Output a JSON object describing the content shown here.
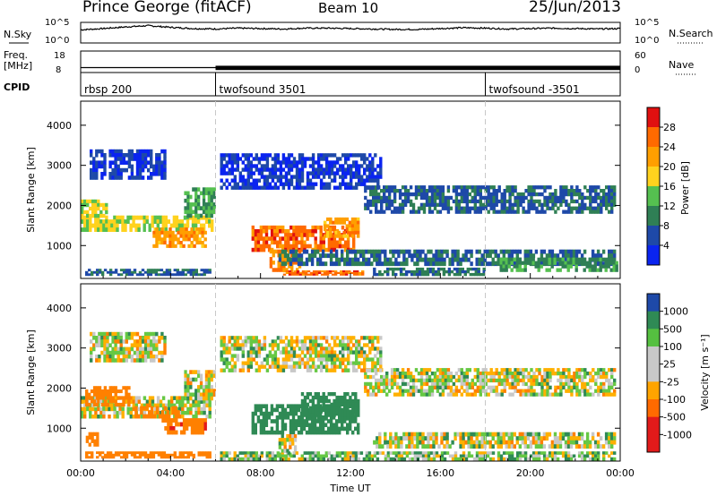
{
  "header": {
    "station": "Prince George (fitACF)",
    "beam": "Beam 10",
    "date": "25/Jun/2013"
  },
  "noise_panel": {
    "left_label": "N.Sky",
    "right_label": "N.Search",
    "left_ticks": [
      "10^5",
      "10^0"
    ],
    "right_ticks": [
      "10^5",
      "10^0"
    ]
  },
  "freq_panel": {
    "left_label_line1": "Freq.",
    "left_label_line2": "[MHz]",
    "right_label": "Nave",
    "left_ticks": [
      "18",
      "8"
    ],
    "right_ticks": [
      "60",
      "0"
    ]
  },
  "cpid_panel": {
    "label": "CPID",
    "segments": [
      {
        "label": "rbsp 200",
        "start_hour": 0
      },
      {
        "label": "twofsound 3501",
        "start_hour": 6
      },
      {
        "label": "twofsound -3501",
        "start_hour": 18
      }
    ]
  },
  "time_axis": {
    "xlabel": "Time UT",
    "tick_labels": [
      "00:00",
      "04:00",
      "08:00",
      "12:00",
      "16:00",
      "20:00",
      "00:00"
    ]
  },
  "power_panel": {
    "ylabel": "Slant Range [km]",
    "colorbar_label": "Power [dB]",
    "colorbar_ticks": [
      "28",
      "24",
      "20",
      "16",
      "12",
      "8",
      "4"
    ]
  },
  "velocity_panel": {
    "ylabel": "Slant Range [km]",
    "colorbar_label": "Velocity [m s⁻¹]",
    "colorbar_ticks": [
      "1000",
      "500",
      "100",
      "25",
      "-25",
      "-100",
      "-500",
      "-1000"
    ]
  },
  "chart_data": [
    {
      "type": "line",
      "name": "N.Sky",
      "x_range_hours": [
        0,
        24
      ],
      "y_scale": "log",
      "ylim": [
        1,
        100000
      ],
      "approx_level_log10": [
        3.2,
        3.5,
        3.9,
        4.2,
        3.8,
        3.5,
        3.4,
        3.6,
        3.5,
        3.4,
        3.6,
        3.6,
        3.5,
        3.4,
        3.3,
        3.3,
        3.5,
        3.7,
        3.6,
        3.4,
        3.5,
        3.6,
        3.5,
        3.4,
        3.5
      ]
    },
    {
      "type": "line",
      "name": "Freq.",
      "ylim": [
        8,
        18
      ],
      "segments": [
        {
          "start_hour": 0,
          "end_hour": 6,
          "freq_mhz": 10.3,
          "second_freq_mhz": 12.4
        },
        {
          "start_hour": 6,
          "end_hour": 24,
          "freq_mhz": 10.4,
          "second_freq_mhz": 12.4
        }
      ]
    },
    {
      "type": "heatmap",
      "name": "Power",
      "x_unit": "hour UT",
      "y_unit": "km",
      "xlim": [
        0,
        24
      ],
      "ylim": [
        180,
        4600
      ],
      "clim": [
        0,
        30
      ],
      "regions": [
        {
          "t0": 0.0,
          "t1": 5.9,
          "r0": 1350,
          "r1": 1750,
          "level": 17
        },
        {
          "t0": 0.0,
          "t1": 1.2,
          "r0": 1700,
          "r1": 2150,
          "level": 16
        },
        {
          "t0": 3.2,
          "t1": 5.6,
          "r0": 950,
          "r1": 1450,
          "level": 22
        },
        {
          "t0": 4.6,
          "t1": 6.0,
          "r0": 1700,
          "r1": 2450,
          "level": 12
        },
        {
          "t0": 0.2,
          "t1": 5.8,
          "r0": 250,
          "r1": 420,
          "level": 8
        },
        {
          "t0": 0.4,
          "t1": 3.8,
          "r0": 2650,
          "r1": 3400,
          "level": 4
        },
        {
          "t0": 7.6,
          "t1": 12.2,
          "r0": 850,
          "r1": 1500,
          "level": 26
        },
        {
          "t0": 8.4,
          "t1": 9.8,
          "r0": 350,
          "r1": 900,
          "level": 23
        },
        {
          "t0": 9.0,
          "t1": 12.6,
          "r0": 260,
          "r1": 380,
          "level": 26
        },
        {
          "t0": 10.8,
          "t1": 12.4,
          "r0": 1200,
          "r1": 1700,
          "level": 22
        },
        {
          "t0": 8.8,
          "t1": 23.8,
          "r0": 500,
          "r1": 900,
          "level": 8
        },
        {
          "t0": 12.6,
          "t1": 23.8,
          "r0": 1800,
          "r1": 2500,
          "level": 7
        },
        {
          "t0": 6.2,
          "t1": 13.4,
          "r0": 2400,
          "r1": 3300,
          "level": 4
        },
        {
          "t0": 18.4,
          "t1": 23.9,
          "r0": 350,
          "r1": 700,
          "level": 11
        },
        {
          "t0": 13.0,
          "t1": 18.0,
          "r0": 250,
          "r1": 450,
          "level": 9
        }
      ]
    },
    {
      "type": "heatmap",
      "name": "Velocity",
      "x_unit": "hour UT",
      "y_unit": "km",
      "xlim": [
        0,
        24
      ],
      "ylim": [
        180,
        4600
      ],
      "clim": [
        -1000,
        1000
      ],
      "regions": [
        {
          "t0": 0.0,
          "t1": 5.8,
          "r0": 1250,
          "r1": 1800,
          "v": 0
        },
        {
          "t0": 0.2,
          "t1": 2.2,
          "r0": 1550,
          "r1": 2050,
          "v": -300
        },
        {
          "t0": 3.6,
          "t1": 5.6,
          "r0": 850,
          "r1": 1250,
          "v": -400
        },
        {
          "t0": 2.4,
          "t1": 4.4,
          "r0": 1250,
          "r1": 1550,
          "v": -300
        },
        {
          "t0": 0.2,
          "t1": 5.8,
          "r0": 250,
          "r1": 420,
          "v": -350
        },
        {
          "t0": 0.0,
          "t1": 0.8,
          "r0": 550,
          "r1": 900,
          "v": -300
        },
        {
          "t0": 4.6,
          "t1": 6.0,
          "r0": 1700,
          "r1": 2450,
          "v": 0
        },
        {
          "t0": 0.4,
          "t1": 3.8,
          "r0": 2650,
          "r1": 3400,
          "v": 0
        },
        {
          "t0": 7.6,
          "t1": 12.4,
          "r0": 850,
          "r1": 1600,
          "v": 250
        },
        {
          "t0": 9.8,
          "t1": 12.4,
          "r0": 1200,
          "r1": 1900,
          "v": 300
        },
        {
          "t0": 8.8,
          "t1": 9.6,
          "r0": 300,
          "r1": 850,
          "v": 0
        },
        {
          "t0": 6.2,
          "t1": 23.8,
          "r0": 200,
          "r1": 420,
          "v": 60
        },
        {
          "t0": 13.0,
          "t1": 23.8,
          "r0": 500,
          "r1": 900,
          "v": 0
        },
        {
          "t0": 12.6,
          "t1": 23.8,
          "r0": 1800,
          "r1": 2500,
          "v": 0
        },
        {
          "t0": 6.2,
          "t1": 13.4,
          "r0": 2400,
          "r1": 3300,
          "v": 0
        }
      ]
    }
  ]
}
